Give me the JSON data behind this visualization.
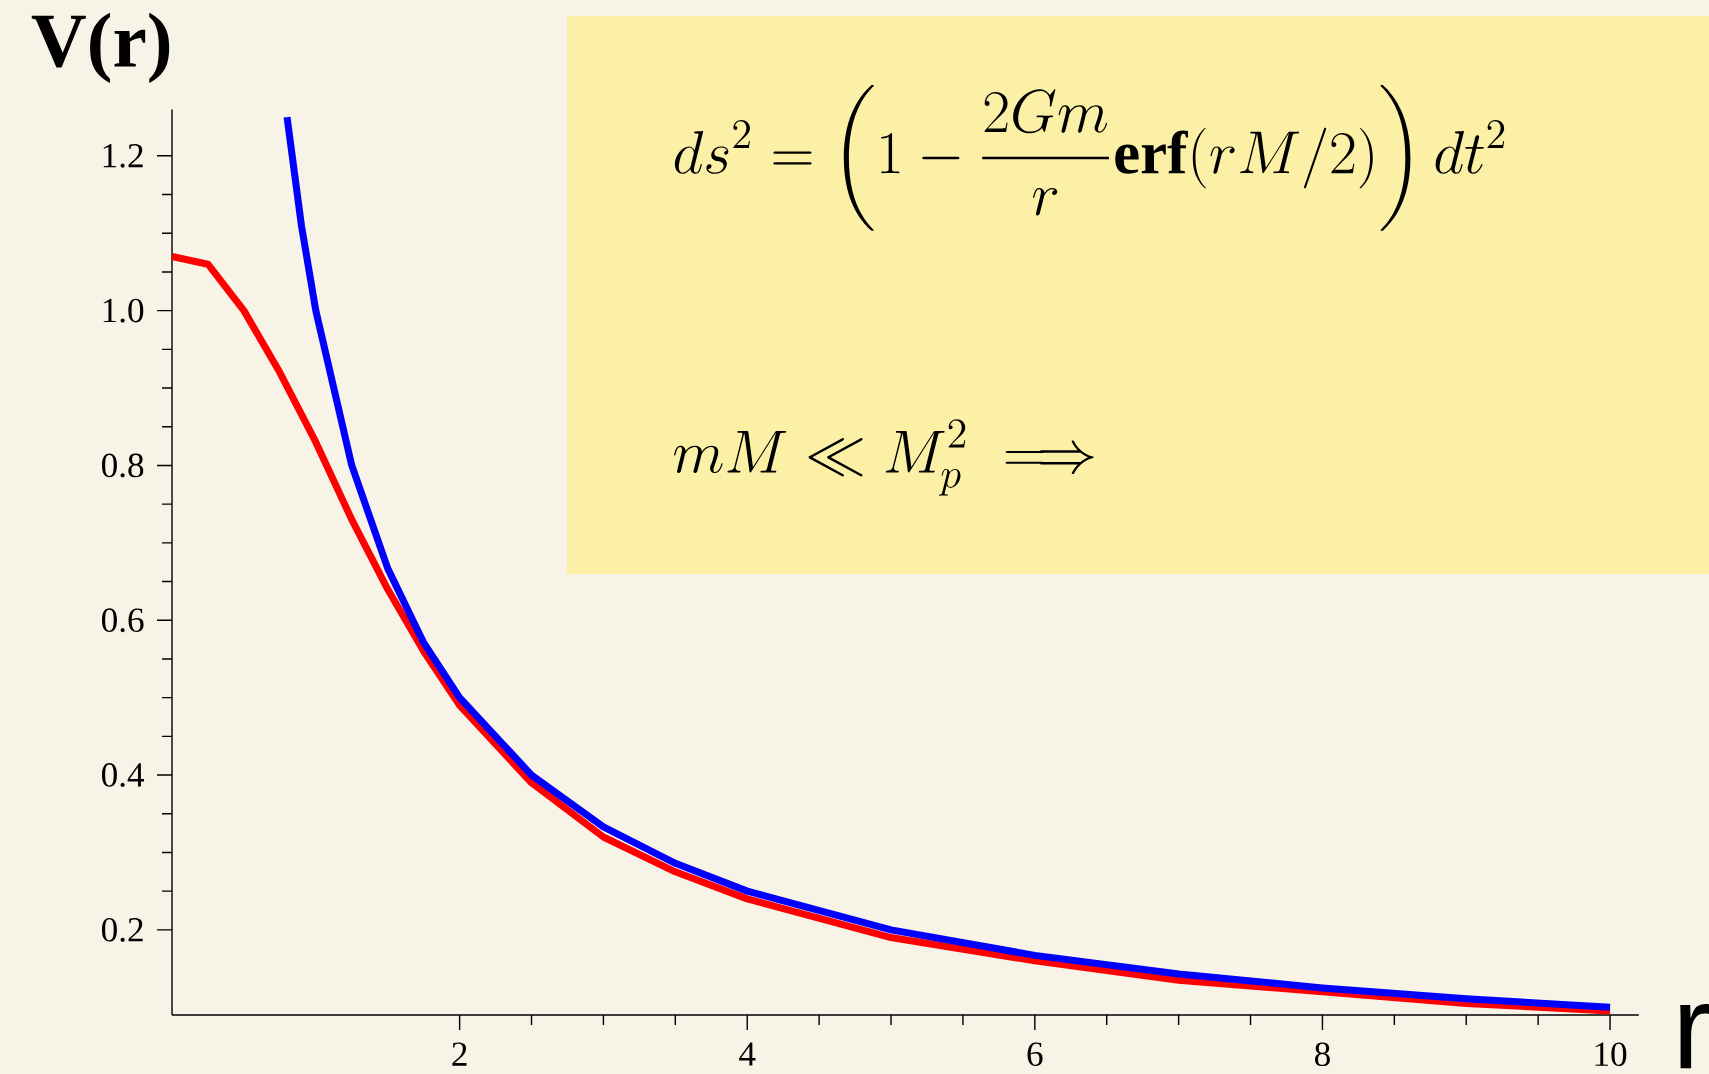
{
  "chart_data": {
    "type": "line",
    "xlabel": "r",
    "ylabel": "V(r)",
    "xlim": [
      0,
      10.2
    ],
    "ylim": [
      0.09,
      1.26
    ],
    "xticks": [
      2,
      4,
      6,
      8,
      10
    ],
    "yticks": [
      0.2,
      0.4,
      0.6,
      0.8,
      {
        "value": 1.0,
        "label": "1.0"
      },
      1.2
    ],
    "series": [
      {
        "color": "#ff0000",
        "x": [
          0,
          0.25,
          0.5,
          0.75,
          1,
          1.25,
          1.5,
          1.75,
          2,
          2.5,
          3,
          3.5,
          4,
          5,
          6,
          7,
          8,
          9,
          10
        ],
        "values": [
          1.07,
          1.06,
          1.0,
          0.92,
          0.83,
          0.73,
          0.64,
          0.56,
          0.49,
          0.39,
          0.32,
          0.275,
          0.24,
          0.19,
          0.16,
          0.135,
          0.12,
          0.105,
          0.095
        ]
      },
      {
        "color": "#0000ff",
        "x": [
          0.8,
          0.9,
          1,
          1.25,
          1.5,
          1.75,
          2,
          2.5,
          3,
          3.5,
          4,
          5,
          6,
          7,
          8,
          9,
          10
        ],
        "values": [
          1.25,
          1.11,
          1.0,
          0.8,
          0.667,
          0.571,
          0.5,
          0.4,
          0.333,
          0.286,
          0.25,
          0.2,
          0.167,
          0.143,
          0.125,
          0.111,
          0.1
        ]
      }
    ],
    "annotations": [
      "ds^2 = \\left(1 - \\frac{2Gm}{r}\\mathbf{erf}(rM/2)\\right) dt^2",
      "mM \\ll M_p^2 \\implies"
    ]
  }
}
